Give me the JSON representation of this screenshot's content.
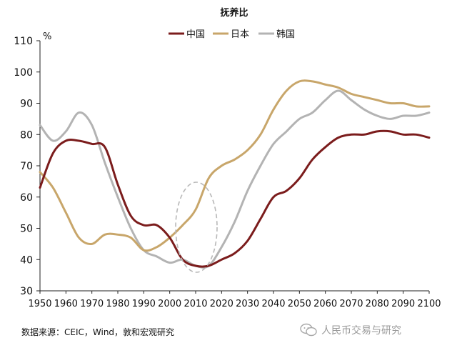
{
  "chart_data": {
    "type": "line",
    "title": "抚养比",
    "ylabel": "%",
    "xlabel": "",
    "xlim": [
      1950,
      2100
    ],
    "ylim": [
      30,
      110
    ],
    "x_ticks": [
      1950,
      1960,
      1970,
      1980,
      1990,
      2000,
      2010,
      2020,
      2030,
      2040,
      2050,
      2060,
      2070,
      2080,
      2090,
      2100
    ],
    "y_ticks": [
      30,
      40,
      50,
      60,
      70,
      80,
      90,
      100,
      110
    ],
    "legend_position": "top-center",
    "annotation": "dashed ellipse highlighting the minimum around 2010",
    "series": [
      {
        "name": "中国",
        "color": "#7b1c1c",
        "x": [
          1950,
          1955,
          1960,
          1965,
          1970,
          1975,
          1980,
          1985,
          1990,
          1995,
          2000,
          2005,
          2010,
          2015,
          2020,
          2025,
          2030,
          2035,
          2040,
          2045,
          2050,
          2055,
          2060,
          2065,
          2070,
          2075,
          2080,
          2085,
          2090,
          2095,
          2100
        ],
        "values": [
          63,
          74,
          78,
          78,
          77,
          76,
          64,
          54,
          51,
          51,
          47,
          40,
          38,
          38,
          40,
          42,
          46,
          53,
          60,
          62,
          66,
          72,
          76,
          79,
          80,
          80,
          81,
          81,
          80,
          80,
          79
        ]
      },
      {
        "name": "日本",
        "color": "#c8a66a",
        "x": [
          1950,
          1955,
          1960,
          1965,
          1970,
          1975,
          1980,
          1985,
          1990,
          1995,
          2000,
          2005,
          2010,
          2015,
          2020,
          2025,
          2030,
          2035,
          2040,
          2045,
          2050,
          2055,
          2060,
          2065,
          2070,
          2075,
          2080,
          2085,
          2090,
          2095,
          2100
        ],
        "values": [
          68,
          63,
          55,
          47,
          45,
          48,
          48,
          47,
          43,
          44,
          47,
          51,
          56,
          66,
          70,
          72,
          75,
          80,
          88,
          94,
          97,
          97,
          96,
          95,
          93,
          92,
          91,
          90,
          90,
          89,
          89
        ]
      },
      {
        "name": "韩国",
        "color": "#b3b3b3",
        "x": [
          1950,
          1955,
          1960,
          1965,
          1970,
          1975,
          1980,
          1985,
          1990,
          1995,
          2000,
          2005,
          2010,
          2015,
          2020,
          2025,
          2030,
          2035,
          2040,
          2045,
          2050,
          2055,
          2060,
          2065,
          2070,
          2075,
          2080,
          2085,
          2090,
          2095,
          2100
        ],
        "values": [
          83,
          78,
          81,
          87,
          83,
          71,
          60,
          50,
          43,
          41,
          39,
          40,
          38,
          38,
          44,
          52,
          62,
          70,
          77,
          81,
          85,
          87,
          91,
          94,
          91,
          88,
          86,
          85,
          86,
          86,
          87
        ]
      }
    ]
  },
  "footer": {
    "source": "数据来源：CEIC，Wind，敦和宏观研究",
    "watermark": "人民币交易与研究"
  }
}
